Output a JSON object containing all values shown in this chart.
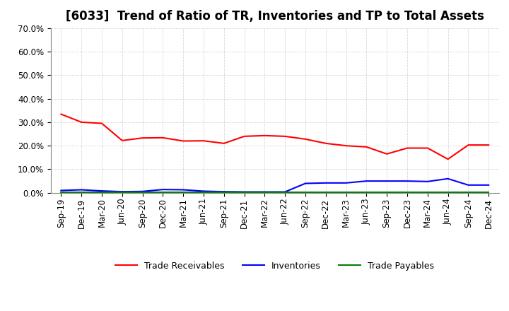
{
  "title": "[6033]  Trend of Ratio of TR, Inventories and TP to Total Assets",
  "x_labels": [
    "Sep-19",
    "Dec-19",
    "Mar-20",
    "Jun-20",
    "Sep-20",
    "Dec-20",
    "Mar-21",
    "Jun-21",
    "Sep-21",
    "Dec-21",
    "Mar-22",
    "Jun-22",
    "Sep-22",
    "Dec-22",
    "Mar-23",
    "Jun-23",
    "Sep-23",
    "Dec-23",
    "Mar-24",
    "Jun-24",
    "Sep-24",
    "Dec-24"
  ],
  "trade_receivables": [
    0.334,
    0.3,
    0.295,
    0.222,
    0.233,
    0.234,
    0.22,
    0.221,
    0.21,
    0.24,
    0.243,
    0.24,
    0.228,
    0.21,
    0.2,
    0.195,
    0.165,
    0.19,
    0.19,
    0.143,
    0.203,
    0.203
  ],
  "inventories": [
    0.01,
    0.013,
    0.008,
    0.005,
    0.006,
    0.014,
    0.013,
    0.007,
    0.005,
    0.004,
    0.004,
    0.004,
    0.04,
    0.042,
    0.042,
    0.05,
    0.05,
    0.05,
    0.048,
    0.06,
    0.033,
    0.033
  ],
  "trade_payables": [
    0.002,
    0.002,
    0.002,
    0.002,
    0.002,
    0.002,
    0.002,
    0.002,
    0.002,
    0.002,
    0.002,
    0.002,
    0.002,
    0.002,
    0.002,
    0.002,
    0.002,
    0.002,
    0.002,
    0.002,
    0.002,
    0.002
  ],
  "tr_color": "#FF0000",
  "inv_color": "#0000FF",
  "tp_color": "#008000",
  "ylim": [
    0.0,
    0.7
  ],
  "yticks": [
    0.0,
    0.1,
    0.2,
    0.3,
    0.4,
    0.5,
    0.6,
    0.7
  ],
  "legend_labels": [
    "Trade Receivables",
    "Inventories",
    "Trade Payables"
  ],
  "background_color": "#FFFFFF",
  "grid_color": "#AAAAAA",
  "title_fontsize": 12,
  "tick_fontsize": 8.5,
  "legend_fontsize": 9
}
